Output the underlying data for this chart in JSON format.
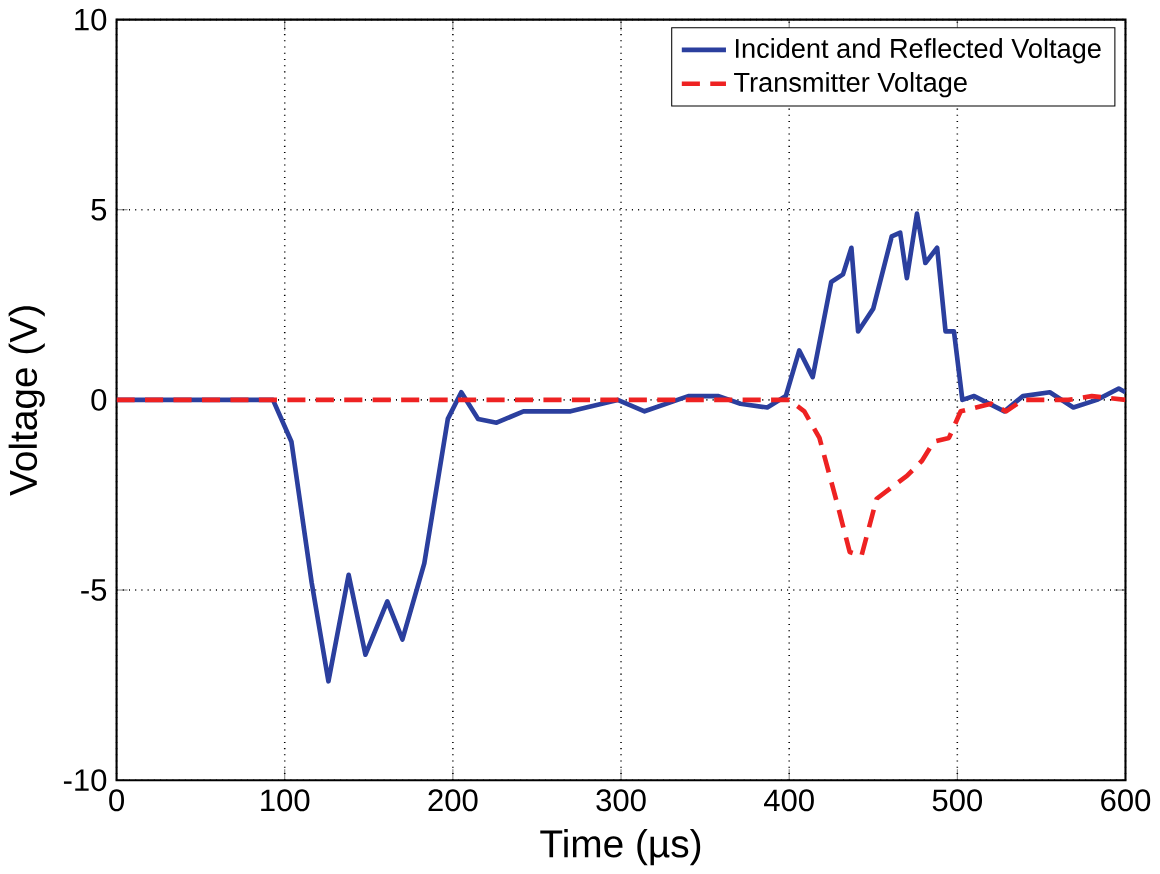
{
  "chart_data": {
    "type": "line",
    "xlabel": "Time (µs)",
    "ylabel": "Voltage (V)",
    "xlim": [
      0,
      600
    ],
    "ylim": [
      -10,
      10
    ],
    "xticks": [
      0,
      100,
      200,
      300,
      400,
      500,
      600
    ],
    "yticks": [
      -10,
      -5,
      0,
      5,
      10
    ],
    "grid": true,
    "legend": "top right",
    "series": [
      {
        "name": "Incident and Reflected Voltage",
        "color": "#2b3f9e",
        "line_style": "solid",
        "x": [
          0,
          50,
          93,
          104,
          116,
          126,
          138,
          148,
          161,
          170,
          183,
          197,
          205,
          215,
          226,
          242,
          270,
          298,
          314,
          340,
          358,
          371,
          387,
          398,
          406,
          414,
          425,
          432,
          437,
          441,
          450,
          461,
          466,
          470,
          476,
          481,
          488,
          493,
          498,
          503,
          510,
          528,
          539,
          555,
          569,
          583,
          596,
          600
        ],
        "values": [
          0,
          0,
          0,
          -1.1,
          -4.8,
          -7.4,
          -4.6,
          -6.7,
          -5.3,
          -6.3,
          -4.3,
          -0.5,
          0.2,
          -0.5,
          -0.6,
          -0.3,
          -0.3,
          0,
          -0.3,
          0.1,
          0.1,
          -0.1,
          -0.2,
          0.1,
          1.3,
          0.6,
          3.1,
          3.3,
          4.0,
          1.8,
          2.4,
          4.3,
          4.4,
          3.2,
          4.9,
          3.6,
          4.0,
          1.8,
          1.8,
          0,
          0.1,
          -0.3,
          0.1,
          0.2,
          -0.2,
          0,
          0.3,
          0.2
        ]
      },
      {
        "name": "Transmitter Voltage",
        "color": "#ee2222",
        "line_style": "dashed",
        "x": [
          0,
          400,
          409,
          418,
          429,
          436,
          443,
          452,
          461,
          470,
          479,
          486,
          495,
          502,
          520,
          529,
          539,
          566,
          580,
          600
        ],
        "values": [
          0,
          0,
          -0.3,
          -1.0,
          -2.8,
          -4.0,
          -4.1,
          -2.6,
          -2.3,
          -2.0,
          -1.6,
          -1.1,
          -1.0,
          -0.3,
          -0.1,
          -0.3,
          0,
          0,
          0.1,
          0
        ]
      }
    ]
  }
}
